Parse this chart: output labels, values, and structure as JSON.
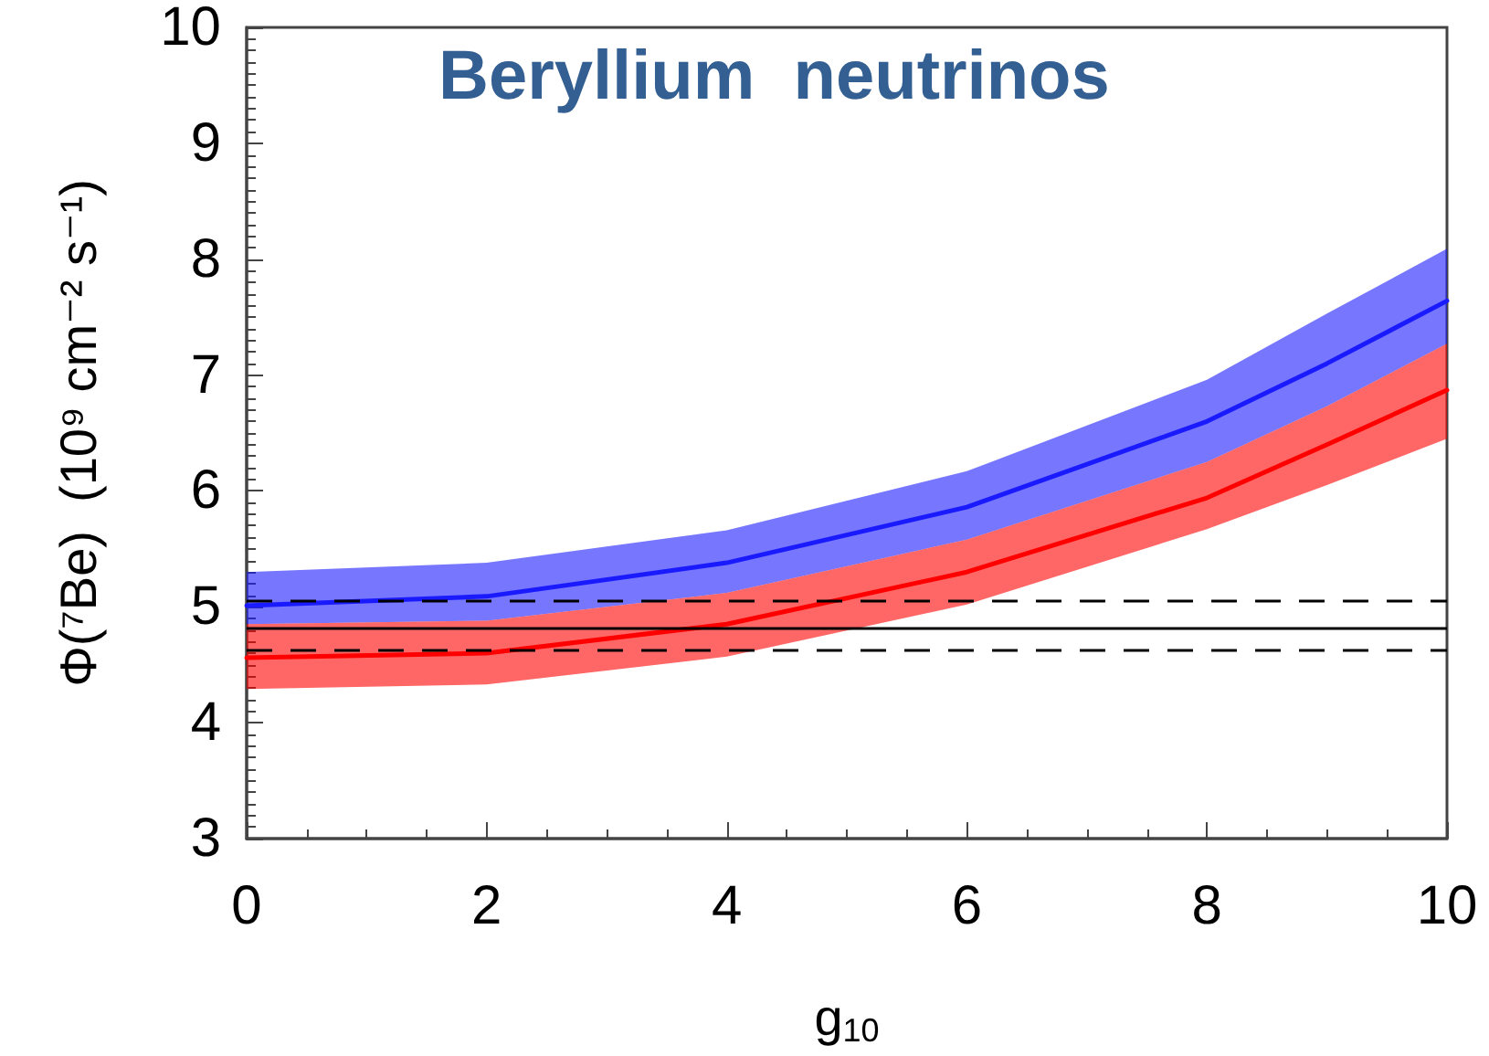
{
  "chart_data": {
    "type": "line",
    "title": "Beryllium  neutrinos",
    "xlabel": "g$_{10}$",
    "ylabel": "Φ(⁷Be)  (10⁹ cm⁻² s⁻¹)",
    "x": [
      0,
      2,
      4,
      6,
      8,
      9,
      10
    ],
    "series": [
      {
        "color": "#1a1aff",
        "values": [
          5.01,
          5.09,
          5.38,
          5.86,
          6.6,
          7.1,
          7.64
        ],
        "lower": [
          4.85,
          4.88,
          5.12,
          5.58,
          6.25,
          6.73,
          7.27
        ],
        "upper": [
          5.3,
          5.38,
          5.66,
          6.17,
          6.96,
          7.53,
          8.09
        ]
      },
      {
        "color": "#ff0000",
        "values": [
          4.56,
          4.6,
          4.85,
          5.3,
          5.94,
          6.4,
          6.87
        ],
        "lower": [
          4.29,
          4.33,
          4.57,
          5.02,
          5.67,
          6.05,
          6.45
        ],
        "upper": [
          4.85,
          4.88,
          5.12,
          5.58,
          6.25,
          6.73,
          7.27
        ]
      }
    ],
    "xlim": [
      0,
      10
    ],
    "xticks": [
      0,
      2,
      4,
      6,
      8,
      10
    ],
    "ylim": [
      3,
      10
    ],
    "yticks": [
      3,
      4,
      5,
      6,
      7,
      8,
      9,
      10
    ],
    "ref_lines": [
      {
        "axis": "y",
        "value": 5.06,
        "line_style": "dashed",
        "color": "#000000"
      },
      {
        "axis": "y",
        "value": 4.82,
        "line_style": "solid",
        "color": "#000000"
      },
      {
        "axis": "y",
        "value": 4.62,
        "line_style": "dashed",
        "color": "#000000"
      }
    ],
    "marker": "none",
    "line_style": "solid",
    "grid": false
  }
}
